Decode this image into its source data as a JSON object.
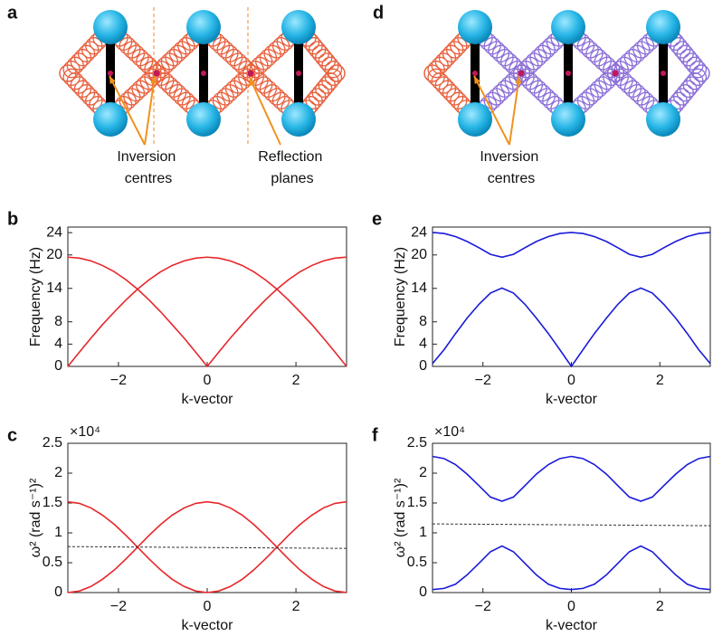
{
  "diagrams": [
    {
      "panel_label": "a",
      "annotations": [
        {
          "lines": [
            "Inversion",
            "centres"
          ]
        },
        {
          "lines": [
            "Reflection",
            "planes"
          ]
        }
      ]
    },
    {
      "panel_label": "d",
      "annotations": [
        {
          "lines": [
            "Inversion",
            "centres"
          ]
        }
      ]
    }
  ],
  "chart_data": [
    {
      "type": "line",
      "panel_label": "b",
      "ylabel": "Frequency (Hz)",
      "xlabel": "k-vector",
      "x": [
        -3.14,
        -2.88,
        -2.62,
        -2.36,
        -2.09,
        -1.83,
        -1.57,
        -1.31,
        -1.05,
        -0.79,
        -0.52,
        -0.26,
        0,
        0.26,
        0.52,
        0.79,
        1.05,
        1.31,
        1.57,
        1.83,
        2.09,
        2.36,
        2.62,
        2.88,
        3.14
      ],
      "series": [
        {
          "color": "#e8262a",
          "values": [
            0,
            2.56,
            5.07,
            7.5,
            9.8,
            11.93,
            13.86,
            15.55,
            16.97,
            18.11,
            18.93,
            19.43,
            19.6,
            19.43,
            18.93,
            18.11,
            16.97,
            15.55,
            13.86,
            11.93,
            9.8,
            7.5,
            5.07,
            2.56,
            0
          ]
        },
        {
          "color": "#e8262a",
          "values": [
            19.6,
            19.43,
            18.93,
            18.11,
            16.97,
            15.55,
            13.86,
            11.93,
            9.8,
            7.5,
            5.07,
            2.56,
            0,
            2.56,
            5.07,
            7.5,
            9.8,
            11.93,
            13.86,
            15.55,
            16.97,
            18.11,
            18.93,
            19.43,
            19.6
          ]
        }
      ],
      "xlim": [
        -3.14,
        3.14
      ],
      "ylim": [
        0,
        25
      ],
      "xticks": [
        {
          "value": -2,
          "label": "−2"
        },
        0,
        2
      ],
      "yticks": [
        0,
        4,
        8,
        14,
        20,
        24
      ]
    },
    {
      "type": "line",
      "panel_label": "e",
      "ylabel": "Frequency (Hz)",
      "xlabel": "k-vector",
      "x": [
        -3.14,
        -2.88,
        -2.62,
        -2.36,
        -2.09,
        -1.83,
        -1.57,
        -1.31,
        -1.05,
        -0.79,
        -0.52,
        -0.26,
        0,
        0.26,
        0.52,
        0.79,
        1.05,
        1.31,
        1.57,
        1.83,
        2.09,
        2.36,
        2.62,
        2.88,
        3.14
      ],
      "series": [
        {
          "color": "#1a1adb",
          "values": [
            24.03,
            23.85,
            23.3,
            22.42,
            21.29,
            20.11,
            19.6,
            20.11,
            21.29,
            22.42,
            23.3,
            23.85,
            24.03,
            23.85,
            23.3,
            22.42,
            21.29,
            20.11,
            19.6,
            20.11,
            21.29,
            22.42,
            23.3,
            23.85,
            24.03
          ]
        },
        {
          "color": "#1a1adb",
          "values": [
            0.5,
            2.98,
            5.89,
            8.64,
            11.14,
            13.16,
            14.06,
            13.16,
            11.14,
            8.64,
            5.89,
            2.98,
            0,
            2.98,
            5.89,
            8.64,
            11.14,
            13.16,
            14.06,
            13.16,
            11.14,
            8.64,
            5.89,
            2.98,
            0.5
          ]
        }
      ],
      "xlim": [
        -3.14,
        3.14
      ],
      "ylim": [
        0,
        25
      ],
      "xticks": [
        {
          "value": -2,
          "label": "−2"
        },
        0,
        2
      ],
      "yticks": [
        0,
        4,
        8,
        14,
        20,
        24
      ]
    },
    {
      "type": "line",
      "panel_label": "c",
      "ylabel": "ω² (rad s⁻¹)²",
      "xlabel": "k-vector",
      "scale_label": "×10⁴",
      "x": [
        -3.14,
        -2.88,
        -2.62,
        -2.36,
        -2.09,
        -1.83,
        -1.57,
        -1.31,
        -1.05,
        -0.79,
        -0.52,
        -0.26,
        0,
        0.26,
        0.52,
        0.79,
        1.05,
        1.31,
        1.57,
        1.83,
        2.09,
        2.36,
        2.62,
        2.88,
        3.14
      ],
      "series": [
        {
          "color": "#e8262a",
          "values": [
            0,
            0.026,
            0.102,
            0.223,
            0.38,
            0.563,
            0.76,
            0.957,
            1.14,
            1.297,
            1.418,
            1.494,
            1.52,
            1.494,
            1.418,
            1.297,
            1.14,
            0.957,
            0.76,
            0.563,
            0.38,
            0.223,
            0.102,
            0.026,
            0
          ]
        },
        {
          "color": "#e8262a",
          "values": [
            1.52,
            1.494,
            1.418,
            1.297,
            1.14,
            0.957,
            0.76,
            0.563,
            0.38,
            0.223,
            0.102,
            0.026,
            0,
            0.026,
            0.102,
            0.223,
            0.38,
            0.563,
            0.76,
            0.957,
            1.14,
            1.297,
            1.418,
            1.494,
            1.52
          ]
        }
      ],
      "reference_line": {
        "x": [
          -3.14,
          3.14
        ],
        "values": [
          0.77,
          0.74
        ],
        "color": "#333333"
      },
      "xlim": [
        -3.14,
        3.14
      ],
      "ylim": [
        0,
        2.5
      ],
      "xticks": [
        {
          "value": -2,
          "label": "−2"
        },
        0,
        2
      ],
      "yticks": [
        0,
        0.5,
        1,
        1.5,
        2,
        2.5
      ]
    },
    {
      "type": "line",
      "panel_label": "f",
      "ylabel": "ω² (rad s⁻¹)²",
      "xlabel": "k-vector",
      "scale_label": "×10⁴",
      "x": [
        -3.14,
        -2.88,
        -2.62,
        -2.36,
        -2.09,
        -1.83,
        -1.57,
        -1.31,
        -1.05,
        -0.79,
        -0.52,
        -0.26,
        0,
        0.26,
        0.52,
        0.79,
        1.05,
        1.31,
        1.57,
        1.83,
        2.09,
        2.36,
        2.62,
        2.88,
        3.14
      ],
      "series": [
        {
          "color": "#1a1adb",
          "values": [
            2.28,
            2.245,
            2.144,
            1.985,
            1.79,
            1.6,
            1.53,
            1.6,
            1.79,
            1.985,
            2.144,
            2.245,
            2.28,
            2.245,
            2.144,
            1.985,
            1.79,
            1.6,
            1.53,
            1.6,
            1.79,
            1.985,
            2.144,
            2.245,
            2.28
          ]
        },
        {
          "color": "#1a1adb",
          "values": [
            0.05,
            0.07,
            0.14,
            0.295,
            0.49,
            0.684,
            0.78,
            0.684,
            0.49,
            0.295,
            0.14,
            0.07,
            0.05,
            0.07,
            0.14,
            0.295,
            0.49,
            0.684,
            0.78,
            0.684,
            0.49,
            0.295,
            0.14,
            0.07,
            0.05
          ]
        }
      ],
      "reference_line": {
        "x": [
          -3.14,
          3.14
        ],
        "values": [
          1.15,
          1.12
        ],
        "color": "#333333"
      },
      "xlim": [
        -3.14,
        3.14
      ],
      "ylim": [
        0,
        2.5
      ],
      "xticks": [
        {
          "value": -2,
          "label": "−2"
        },
        0,
        2
      ],
      "yticks": [
        0,
        0.5,
        1,
        1.5,
        2,
        2.5
      ]
    }
  ]
}
